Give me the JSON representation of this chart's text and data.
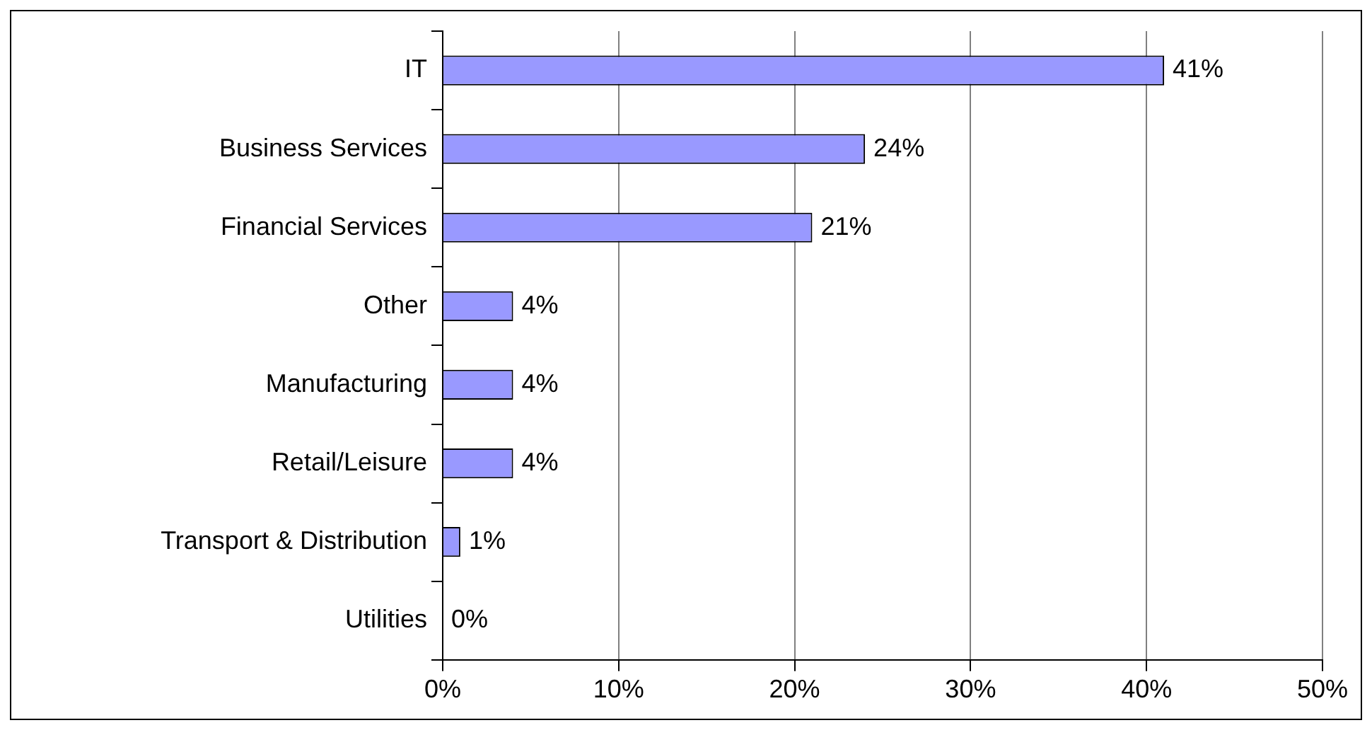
{
  "chart_data": {
    "type": "bar",
    "orientation": "horizontal",
    "categories": [
      "IT",
      "Business Services",
      "Financial Services",
      "Other",
      "Manufacturing",
      "Retail/Leisure",
      "Transport & Distribution",
      "Utilities"
    ],
    "values": [
      41,
      24,
      21,
      4,
      4,
      4,
      1,
      0
    ],
    "value_labels": [
      "41%",
      "24%",
      "21%",
      "4%",
      "4%",
      "4%",
      "1%",
      "0%"
    ],
    "color": "#9999ff",
    "xlim": [
      0,
      50
    ],
    "xticks": [
      {
        "value": 0,
        "label": "0%"
      },
      {
        "value": 10,
        "label": "10%"
      },
      {
        "value": 20,
        "label": "20%"
      },
      {
        "value": 30,
        "label": "30%"
      },
      {
        "value": 40,
        "label": "40%"
      },
      {
        "value": 50,
        "label": "50%"
      }
    ],
    "grid": "x",
    "legend": false
  }
}
